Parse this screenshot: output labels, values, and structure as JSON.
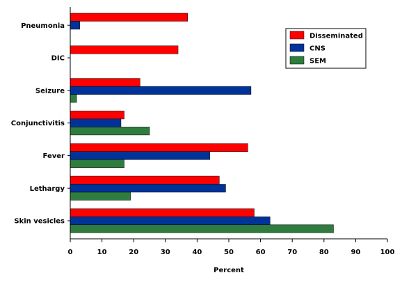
{
  "chart_data": {
    "type": "bar",
    "orientation": "horizontal",
    "categories": [
      "Pneumonia",
      "DIC",
      "Seizure",
      "Conjunctivitis",
      "Fever",
      "Lethargy",
      "Skin vesicles"
    ],
    "series": [
      {
        "name": "Disseminated",
        "color": "#ff0000",
        "values": [
          37,
          34,
          22,
          17,
          56,
          47,
          58
        ]
      },
      {
        "name": "CNS",
        "color": "#003399",
        "values": [
          3,
          null,
          57,
          16,
          44,
          49,
          63
        ]
      },
      {
        "name": "SEM",
        "color": "#2e7d3e",
        "values": [
          null,
          null,
          2,
          25,
          17,
          19,
          83
        ]
      }
    ],
    "xlabel": "Percent",
    "ylabel": "",
    "xlim": [
      0,
      100
    ],
    "xticks": [
      0,
      10,
      20,
      30,
      40,
      50,
      60,
      70,
      80,
      90,
      100
    ],
    "grid": false,
    "legend_position": "top-right"
  }
}
